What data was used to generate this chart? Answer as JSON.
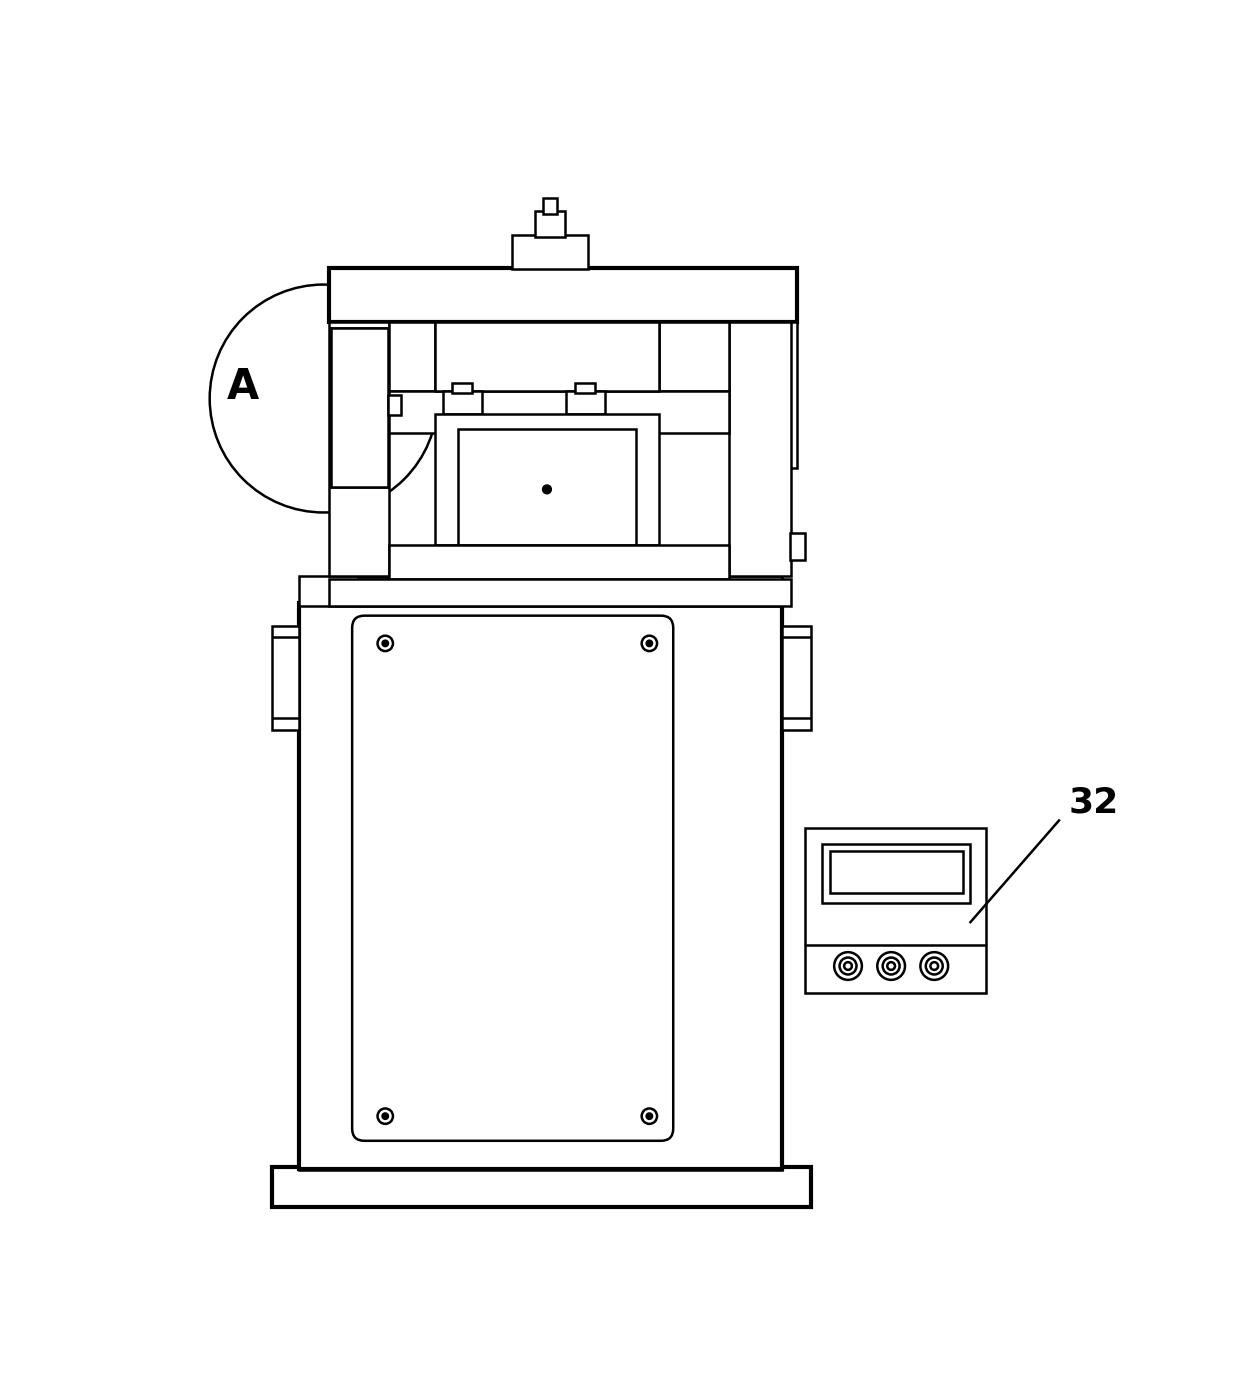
{
  "bg_color": "#ffffff",
  "lc": "#000000",
  "lw": 1.8,
  "tlw": 3.0,
  "fig_w": 12.4,
  "fig_h": 13.96,
  "label_A": "A",
  "label_32": "32"
}
